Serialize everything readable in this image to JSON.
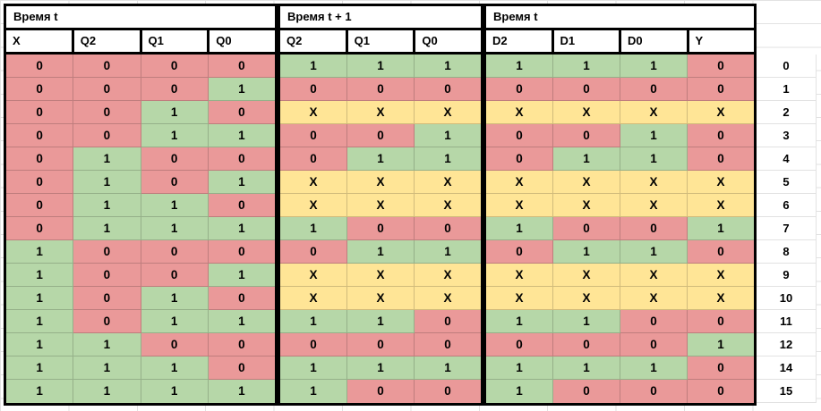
{
  "value_colors": {
    "0": "#ea9999",
    "1": "#b6d7a8",
    "X": "#ffe596"
  },
  "groups": [
    {
      "label": "Время t",
      "columns": [
        "X",
        "Q2",
        "Q1",
        "Q0"
      ]
    },
    {
      "label": "Время t + 1",
      "columns": [
        "Q2",
        "Q1",
        "Q0"
      ]
    },
    {
      "label": "Время t",
      "columns": [
        "D2",
        "D1",
        "D0",
        "Y"
      ]
    }
  ],
  "rows": [
    [
      "0",
      "0",
      "0",
      "0",
      "1",
      "1",
      "1",
      "1",
      "1",
      "1",
      "0"
    ],
    [
      "0",
      "0",
      "0",
      "1",
      "0",
      "0",
      "0",
      "0",
      "0",
      "0",
      "0"
    ],
    [
      "0",
      "0",
      "1",
      "0",
      "X",
      "X",
      "X",
      "X",
      "X",
      "X",
      "X"
    ],
    [
      "0",
      "0",
      "1",
      "1",
      "0",
      "0",
      "1",
      "0",
      "0",
      "1",
      "0"
    ],
    [
      "0",
      "1",
      "0",
      "0",
      "0",
      "1",
      "1",
      "0",
      "1",
      "1",
      "0"
    ],
    [
      "0",
      "1",
      "0",
      "1",
      "X",
      "X",
      "X",
      "X",
      "X",
      "X",
      "X"
    ],
    [
      "0",
      "1",
      "1",
      "0",
      "X",
      "X",
      "X",
      "X",
      "X",
      "X",
      "X"
    ],
    [
      "0",
      "1",
      "1",
      "1",
      "1",
      "0",
      "0",
      "1",
      "0",
      "0",
      "1"
    ],
    [
      "1",
      "0",
      "0",
      "0",
      "0",
      "1",
      "1",
      "0",
      "1",
      "1",
      "0"
    ],
    [
      "1",
      "0",
      "0",
      "1",
      "X",
      "X",
      "X",
      "X",
      "X",
      "X",
      "X"
    ],
    [
      "1",
      "0",
      "1",
      "0",
      "X",
      "X",
      "X",
      "X",
      "X",
      "X",
      "X"
    ],
    [
      "1",
      "0",
      "1",
      "1",
      "1",
      "1",
      "0",
      "1",
      "1",
      "0",
      "0"
    ],
    [
      "1",
      "1",
      "0",
      "0",
      "0",
      "0",
      "0",
      "0",
      "0",
      "0",
      "1"
    ],
    [
      "1",
      "1",
      "1",
      "0",
      "1",
      "1",
      "1",
      "1",
      "1",
      "1",
      "0"
    ],
    [
      "1",
      "1",
      "1",
      "1",
      "1",
      "0",
      "0",
      "1",
      "0",
      "0",
      "0"
    ]
  ],
  "row_labels": [
    "0",
    "1",
    "2",
    "3",
    "4",
    "5",
    "6",
    "7",
    "8",
    "9",
    "10",
    "11",
    "12",
    "14",
    "15"
  ]
}
